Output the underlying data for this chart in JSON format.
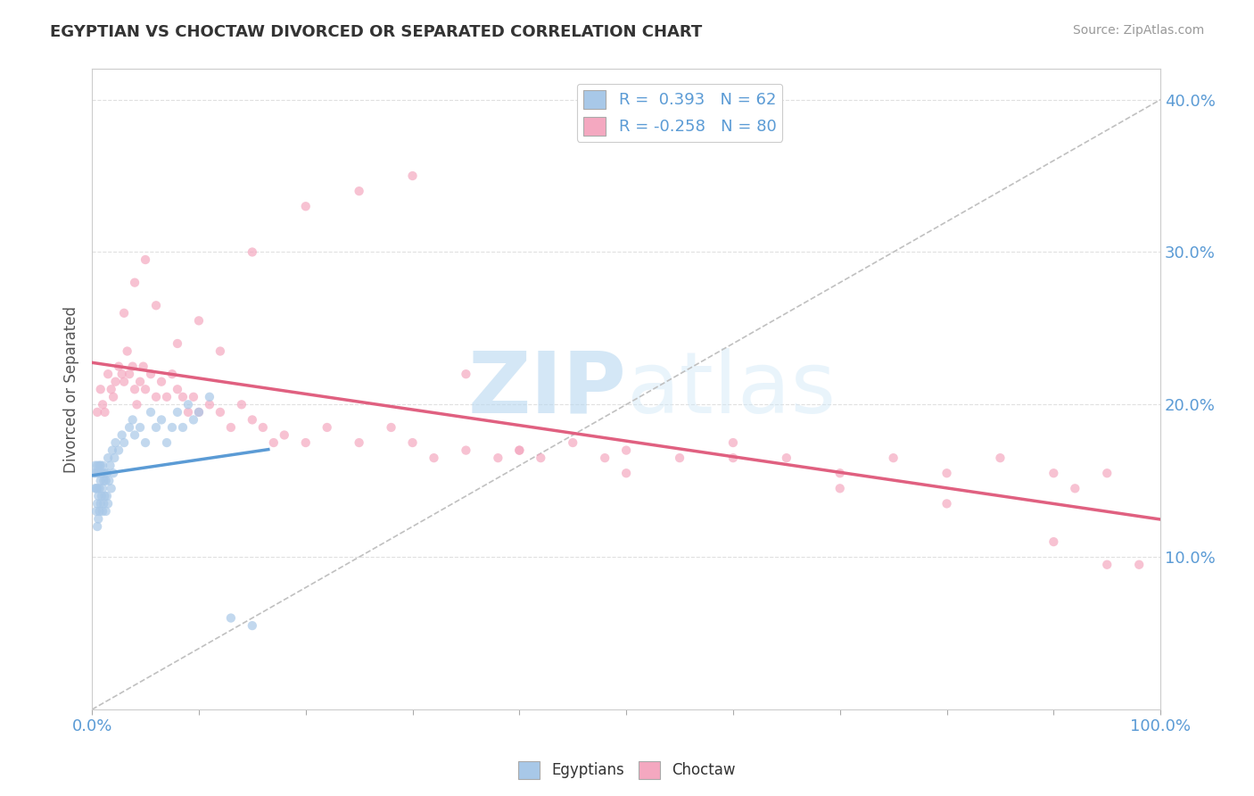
{
  "title": "EGYPTIAN VS CHOCTAW DIVORCED OR SEPARATED CORRELATION CHART",
  "source": "Source: ZipAtlas.com",
  "ylabel": "Divorced or Separated",
  "legend_egyptians": "Egyptians",
  "legend_choctaw": "Choctaw",
  "r_egyptian": 0.393,
  "n_egyptian": 62,
  "r_choctaw": -0.258,
  "n_choctaw": 80,
  "color_egyptian": "#a8c8e8",
  "color_choctaw": "#f4a8c0",
  "trendline_color_egyptian": "#5b9bd5",
  "trendline_color_choctaw": "#e06080",
  "diagonal_color": "#c0c0c0",
  "background_color": "#ffffff",
  "grid_color": "#e0e0e0",
  "watermark_zip": "ZIP",
  "watermark_atlas": "atlas",
  "xlim": [
    0.0,
    1.0
  ],
  "ylim": [
    0.0,
    0.42
  ],
  "yticks": [
    0.1,
    0.2,
    0.3,
    0.4
  ],
  "xticks": [
    0.0,
    0.1,
    0.2,
    0.3,
    0.4,
    0.5,
    0.6,
    0.7,
    0.8,
    0.9,
    1.0
  ],
  "eg_x": [
    0.002,
    0.003,
    0.003,
    0.004,
    0.004,
    0.004,
    0.005,
    0.005,
    0.005,
    0.005,
    0.006,
    0.006,
    0.006,
    0.007,
    0.007,
    0.007,
    0.008,
    0.008,
    0.008,
    0.009,
    0.009,
    0.01,
    0.01,
    0.01,
    0.011,
    0.011,
    0.012,
    0.012,
    0.013,
    0.013,
    0.014,
    0.014,
    0.015,
    0.015,
    0.016,
    0.017,
    0.018,
    0.019,
    0.02,
    0.021,
    0.022,
    0.025,
    0.028,
    0.03,
    0.035,
    0.038,
    0.04,
    0.045,
    0.05,
    0.055,
    0.06,
    0.065,
    0.07,
    0.075,
    0.08,
    0.085,
    0.09,
    0.095,
    0.1,
    0.11,
    0.13,
    0.15
  ],
  "eg_y": [
    0.155,
    0.145,
    0.16,
    0.13,
    0.145,
    0.155,
    0.12,
    0.135,
    0.145,
    0.16,
    0.125,
    0.14,
    0.155,
    0.13,
    0.145,
    0.16,
    0.135,
    0.15,
    0.16,
    0.14,
    0.155,
    0.13,
    0.145,
    0.16,
    0.135,
    0.15,
    0.14,
    0.155,
    0.13,
    0.15,
    0.14,
    0.155,
    0.135,
    0.165,
    0.15,
    0.16,
    0.145,
    0.17,
    0.155,
    0.165,
    0.175,
    0.17,
    0.18,
    0.175,
    0.185,
    0.19,
    0.18,
    0.185,
    0.175,
    0.195,
    0.185,
    0.19,
    0.175,
    0.185,
    0.195,
    0.185,
    0.2,
    0.19,
    0.195,
    0.205,
    0.06,
    0.055
  ],
  "ch_x": [
    0.005,
    0.008,
    0.01,
    0.012,
    0.015,
    0.018,
    0.02,
    0.022,
    0.025,
    0.028,
    0.03,
    0.033,
    0.035,
    0.038,
    0.04,
    0.042,
    0.045,
    0.048,
    0.05,
    0.055,
    0.06,
    0.065,
    0.07,
    0.075,
    0.08,
    0.085,
    0.09,
    0.095,
    0.1,
    0.11,
    0.12,
    0.13,
    0.14,
    0.15,
    0.16,
    0.17,
    0.18,
    0.2,
    0.22,
    0.25,
    0.28,
    0.3,
    0.32,
    0.35,
    0.38,
    0.4,
    0.42,
    0.45,
    0.48,
    0.5,
    0.55,
    0.6,
    0.65,
    0.7,
    0.75,
    0.8,
    0.85,
    0.9,
    0.92,
    0.95,
    0.03,
    0.04,
    0.05,
    0.06,
    0.08,
    0.1,
    0.12,
    0.15,
    0.2,
    0.25,
    0.3,
    0.35,
    0.4,
    0.5,
    0.6,
    0.7,
    0.8,
    0.9,
    0.95,
    0.98
  ],
  "ch_y": [
    0.195,
    0.21,
    0.2,
    0.195,
    0.22,
    0.21,
    0.205,
    0.215,
    0.225,
    0.22,
    0.215,
    0.235,
    0.22,
    0.225,
    0.21,
    0.2,
    0.215,
    0.225,
    0.21,
    0.22,
    0.205,
    0.215,
    0.205,
    0.22,
    0.21,
    0.205,
    0.195,
    0.205,
    0.195,
    0.2,
    0.195,
    0.185,
    0.2,
    0.19,
    0.185,
    0.175,
    0.18,
    0.175,
    0.185,
    0.175,
    0.185,
    0.175,
    0.165,
    0.17,
    0.165,
    0.17,
    0.165,
    0.175,
    0.165,
    0.17,
    0.165,
    0.175,
    0.165,
    0.155,
    0.165,
    0.155,
    0.165,
    0.155,
    0.145,
    0.155,
    0.26,
    0.28,
    0.295,
    0.265,
    0.24,
    0.255,
    0.235,
    0.3,
    0.33,
    0.34,
    0.35,
    0.22,
    0.17,
    0.155,
    0.165,
    0.145,
    0.135,
    0.11,
    0.095,
    0.095
  ]
}
